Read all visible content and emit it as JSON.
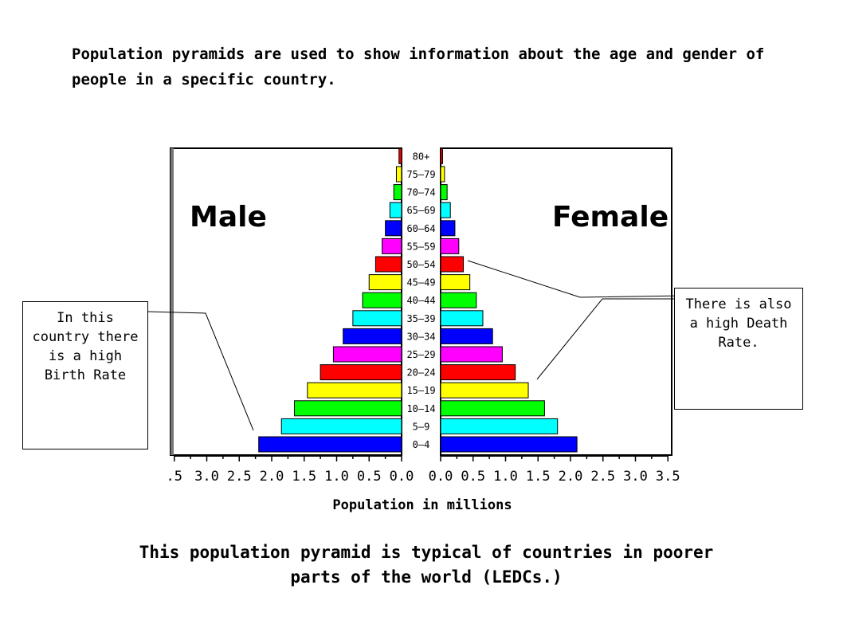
{
  "intro_text": "Population pyramids are used to show information about the age and gender of people in a specific country.",
  "chart_data": {
    "type": "bar",
    "orientation": "horizontal-pyramid",
    "categories": [
      "0-4",
      "5-9",
      "10-14",
      "15-19",
      "20-24",
      "25-29",
      "30-34",
      "35-39",
      "40-44",
      "45-49",
      "50-54",
      "55-59",
      "60-64",
      "65-69",
      "70-74",
      "75-79",
      "80+"
    ],
    "category_labels": [
      "0–4",
      "5–9",
      "10–14",
      "15–19",
      "20–24",
      "25–29",
      "30–34",
      "35–39",
      "40–44",
      "45–49",
      "50–54",
      "55–59",
      "60–64",
      "65–69",
      "70–74",
      "75–79",
      "80+"
    ],
    "series": [
      {
        "name": "Male",
        "values": [
          2.2,
          1.85,
          1.65,
          1.45,
          1.25,
          1.05,
          0.9,
          0.75,
          0.6,
          0.5,
          0.4,
          0.3,
          0.25,
          0.18,
          0.12,
          0.08,
          0.04
        ]
      },
      {
        "name": "Female",
        "values": [
          2.1,
          1.8,
          1.6,
          1.35,
          1.15,
          0.95,
          0.8,
          0.65,
          0.55,
          0.45,
          0.35,
          0.28,
          0.22,
          0.15,
          0.1,
          0.06,
          0.03
        ]
      }
    ],
    "band_colors": [
      "#0000ff",
      "#00ffff",
      "#00ff00",
      "#ffff00",
      "#ff0000",
      "#ff00ff"
    ],
    "male_ticks": [
      ".5",
      "3.0",
      "2.5",
      "2.0",
      "1.5",
      "1.0",
      "0.5",
      "0.0"
    ],
    "female_ticks": [
      "0.0",
      "0.5",
      "1.0",
      "1.5",
      "2.0",
      "2.5",
      "3.0",
      "3.5"
    ],
    "xlim": [
      0,
      3.5
    ],
    "xlabel": "Population in millions",
    "male_label": "Male",
    "female_label": "Female"
  },
  "callouts": {
    "left": "In this country there is a high Birth Rate",
    "right": "There is also a high Death Rate."
  },
  "summary": "This population pyramid is typical of countries in poorer parts of the world (LEDCs.)"
}
